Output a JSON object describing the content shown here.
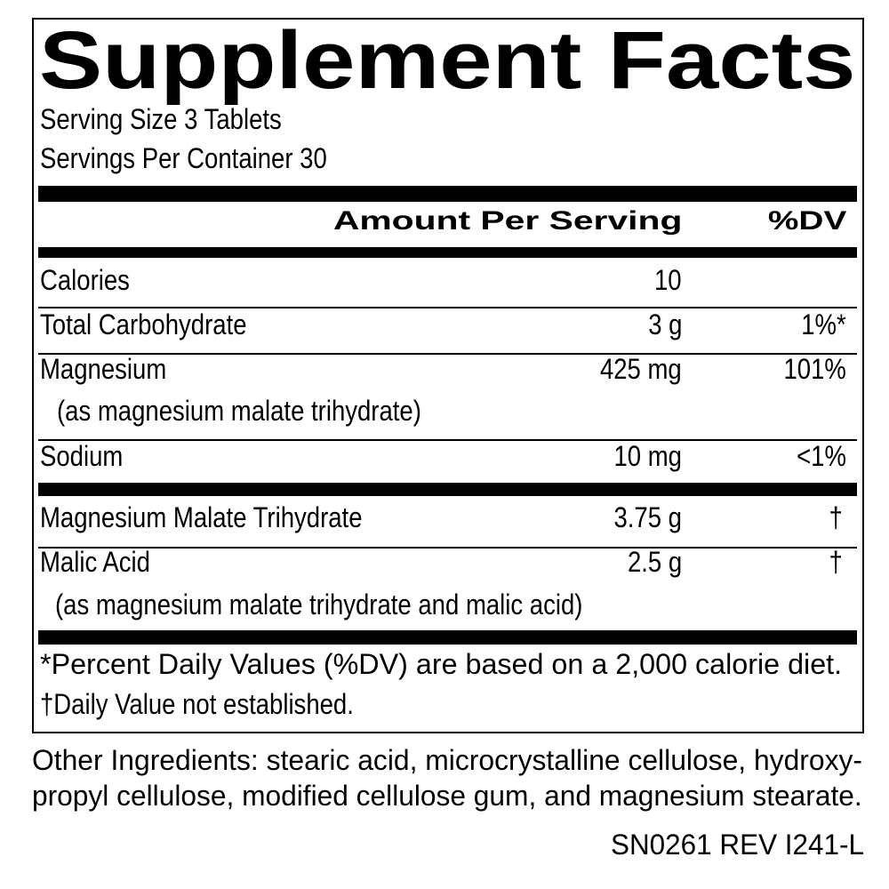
{
  "title": "Supplement Facts",
  "serving_size": "Serving Size 3 Tablets",
  "servings_per_container": "Servings Per Container 30",
  "header": {
    "amount": "Amount Per Serving",
    "dv": "%DV"
  },
  "rows": [
    {
      "name": "Calories",
      "amount": "10",
      "dv": ""
    },
    {
      "name": "Total Carbohydrate",
      "amount": "3 g",
      "dv": "1%*"
    },
    {
      "name": "Magnesium",
      "sub": "(as magnesium malate trihydrate)",
      "amount": "425 mg",
      "dv": "101%"
    },
    {
      "name": "Sodium",
      "amount": "10 mg",
      "dv": "<1%"
    },
    {
      "name": "Magnesium Malate Trihydrate",
      "amount": "3.75 g",
      "dv": "†"
    },
    {
      "name": "Malic Acid",
      "sub": "(as magnesium malate trihydrate and malic acid)",
      "amount": "2.5 g",
      "dv": "†"
    }
  ],
  "footnotes": [
    "*Percent Daily Values (%DV) are based on a 2,000 calorie diet.",
    "†Daily Value not established."
  ],
  "other_ingredients": [
    "Other Ingredients: stearic acid, microcrystalline cellulose, hydroxy-",
    "propyl cellulose, modified cellulose gum, and magnesium stearate."
  ],
  "code": "SN0261 REV I241-L"
}
